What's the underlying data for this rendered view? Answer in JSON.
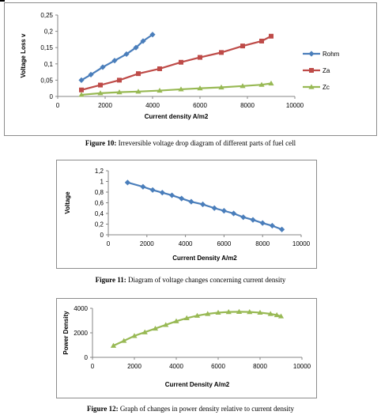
{
  "figures": [
    {
      "caption_label": "Figure 10:",
      "caption_text": " Irreversible voltage drop diagram of different parts of fuel cell"
    },
    {
      "caption_label": "Figure 11:",
      "caption_text": " Diagram of voltage changes concerning current density"
    },
    {
      "caption_label": "Figure 12:",
      "caption_text": " Graph of changes in power density relative to current density"
    }
  ],
  "chart_data": [
    {
      "type": "line",
      "title": "",
      "xlabel": "Current density A/m2",
      "ylabel": "Voltage Loss v",
      "xlim": [
        0,
        10000
      ],
      "ylim": [
        0,
        0.25
      ],
      "x_ticks": [
        0,
        2000,
        4000,
        6000,
        8000,
        10000
      ],
      "x_tick_labels": [
        "0",
        "2000",
        "4000",
        "6000",
        "8000",
        "10000"
      ],
      "y_ticks": [
        0,
        0.05,
        0.1,
        0.15,
        0.2,
        0.25
      ],
      "y_tick_labels": [
        "0",
        "0,05",
        "0,1",
        "0,15",
        "0,2",
        "0,25"
      ],
      "grid": false,
      "legend": "right",
      "series": [
        {
          "name": "Rohm",
          "color": "#4a7ebb",
          "marker": "diamond",
          "x": [
            1000,
            1400,
            1900,
            2400,
            2900,
            3300,
            3600,
            4000
          ],
          "y": [
            0.05,
            0.067,
            0.09,
            0.11,
            0.13,
            0.15,
            0.17,
            0.19
          ]
        },
        {
          "name": "Za",
          "color": "#be4b48",
          "marker": "square",
          "x": [
            1000,
            1800,
            2600,
            3400,
            4300,
            5200,
            6000,
            6900,
            7800,
            8600,
            9000
          ],
          "y": [
            0.02,
            0.035,
            0.05,
            0.07,
            0.085,
            0.105,
            0.12,
            0.135,
            0.155,
            0.17,
            0.185
          ]
        },
        {
          "name": "Zc",
          "color": "#98b954",
          "marker": "triangle",
          "x": [
            1000,
            1800,
            2600,
            3400,
            4300,
            5200,
            6000,
            6900,
            7800,
            8600,
            9000
          ],
          "y": [
            0.005,
            0.01,
            0.013,
            0.015,
            0.018,
            0.022,
            0.025,
            0.028,
            0.032,
            0.036,
            0.04
          ]
        }
      ]
    },
    {
      "type": "line",
      "title": "",
      "xlabel": "Current Density A/m2",
      "ylabel": "Voltage",
      "xlim": [
        0,
        10000
      ],
      "ylim": [
        0,
        1.2
      ],
      "x_ticks": [
        0,
        2000,
        4000,
        6000,
        8000,
        10000
      ],
      "x_tick_labels": [
        "0",
        "2000",
        "4000",
        "6000",
        "8000",
        "10000"
      ],
      "y_ticks": [
        0,
        0.2,
        0.4,
        0.6,
        0.8,
        1,
        1.2
      ],
      "y_tick_labels": [
        "0",
        "0,2",
        "0,4",
        "0,6",
        "0,8",
        "1",
        "1,2"
      ],
      "grid": false,
      "legend": "none",
      "series": [
        {
          "name": "",
          "color": "#4a7ebb",
          "marker": "diamond",
          "x": [
            1000,
            1800,
            2300,
            2800,
            3300,
            3800,
            4300,
            4900,
            5500,
            6000,
            6500,
            7000,
            7500,
            8000,
            8500,
            9000
          ],
          "y": [
            0.98,
            0.9,
            0.84,
            0.79,
            0.74,
            0.68,
            0.62,
            0.57,
            0.5,
            0.45,
            0.4,
            0.33,
            0.28,
            0.22,
            0.17,
            0.1
          ]
        }
      ]
    },
    {
      "type": "line",
      "title": "",
      "xlabel": "Current Density A/m2",
      "ylabel": "Power Density",
      "xlim": [
        0,
        10000
      ],
      "ylim": [
        0,
        4000
      ],
      "x_ticks": [
        0,
        2000,
        4000,
        6000,
        8000,
        10000
      ],
      "x_tick_labels": [
        "0",
        "2000",
        "4000",
        "6000",
        "8000",
        "10000"
      ],
      "y_ticks": [
        0,
        2000,
        4000
      ],
      "y_tick_labels": [
        "0",
        "2000",
        "4000"
      ],
      "grid": false,
      "legend": "none",
      "series": [
        {
          "name": "",
          "color": "#98b954",
          "marker": "triangle",
          "x": [
            1000,
            1500,
            2000,
            2500,
            3000,
            3500,
            4000,
            4500,
            5000,
            5500,
            6000,
            6500,
            7000,
            7500,
            8000,
            8500,
            8800,
            9000
          ],
          "y": [
            950,
            1350,
            1750,
            2050,
            2350,
            2650,
            2950,
            3200,
            3400,
            3550,
            3650,
            3700,
            3720,
            3700,
            3650,
            3550,
            3450,
            3350
          ]
        }
      ]
    }
  ]
}
